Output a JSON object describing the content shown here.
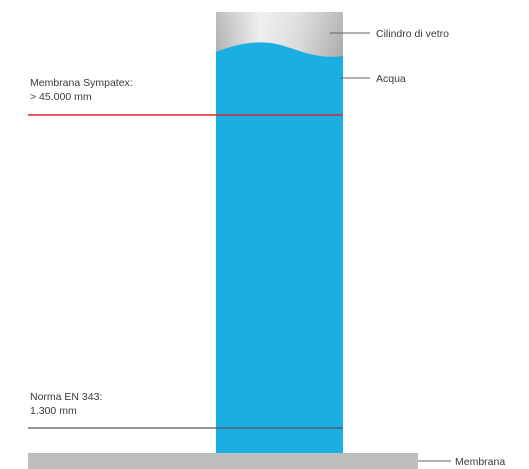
{
  "labels": {
    "glass_cylinder": "Cilindro di vetro",
    "water": "Acqua",
    "sympatex_line1": "Membrana Sympatex:",
    "sympatex_line2": "> 45.000 mm",
    "en343_line1": "Norma EN 343:",
    "en343_line2": "1.300 mm",
    "membrane": "Membrana"
  },
  "colors": {
    "water": "#1aaee3",
    "glass_top": "#f2f2f2",
    "glass_bottom": "#b9b9b9",
    "sympatex_line": "#d9262c",
    "en343_line": "#555555",
    "membrane_bar": "#bdbdbd",
    "leader_line": "#666666"
  }
}
